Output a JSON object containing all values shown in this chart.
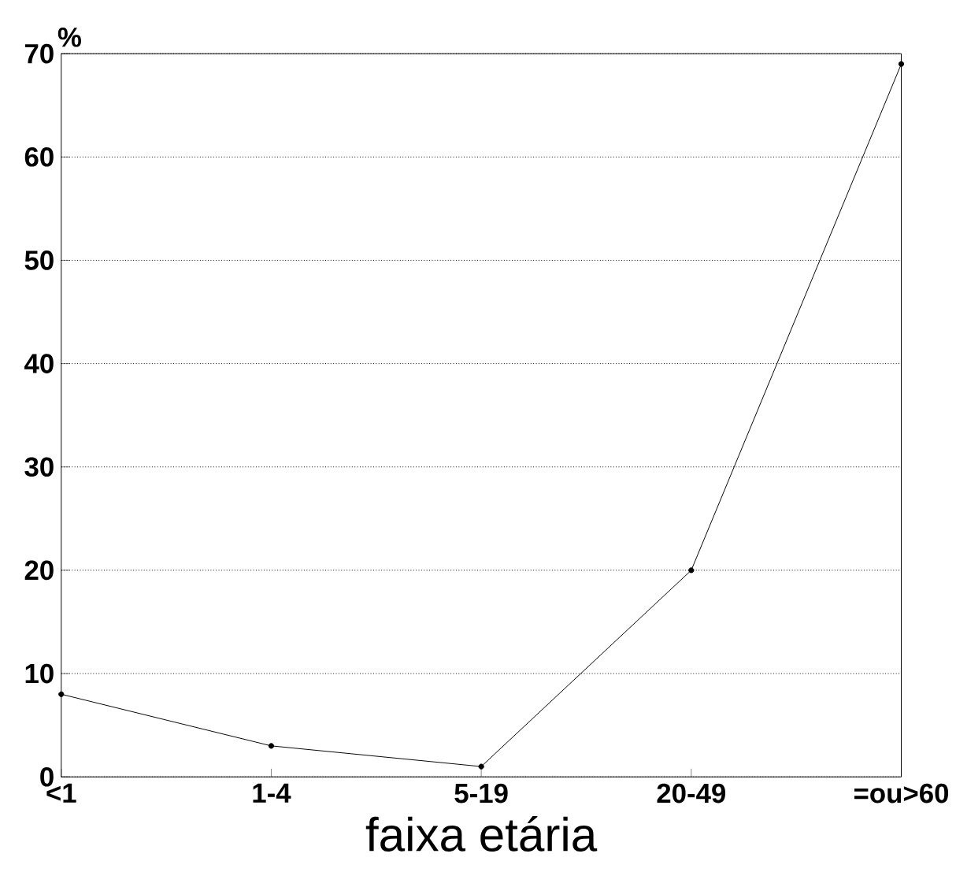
{
  "chart_data": {
    "type": "line",
    "xlabel": "faixa etária",
    "ylabel": "%",
    "categories": [
      "<1",
      "1-4",
      "5-19",
      "20-49",
      "=ou>60"
    ],
    "series": [
      {
        "color": "#000000",
        "values": [
          8,
          3,
          1,
          20,
          69
        ]
      }
    ],
    "ylim": [
      0,
      70
    ],
    "yticks": [
      0,
      10,
      20,
      30,
      40,
      50,
      60,
      70
    ],
    "grid": "y",
    "marker": "circle",
    "line_style": "solid"
  }
}
